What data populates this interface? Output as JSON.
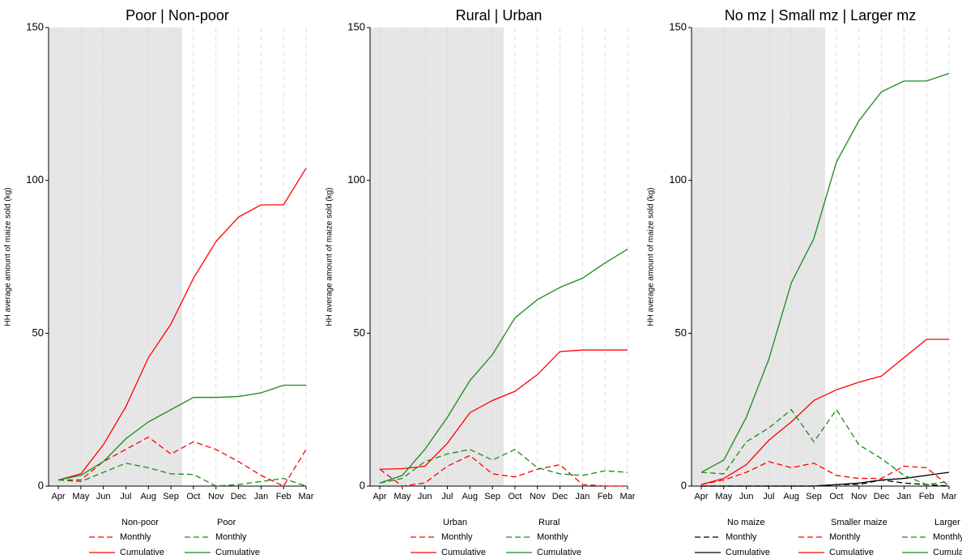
{
  "chart_data": [
    {
      "type": "line",
      "title": "Poor | Non-poor",
      "y_label": "HH average amount of maize sold (kg)",
      "categories": [
        "Apr",
        "May",
        "Jun",
        "Jul",
        "Aug",
        "Sep",
        "Oct",
        "Nov",
        "Dec",
        "Jan",
        "Feb",
        "Mar"
      ],
      "ylim": [
        0,
        150
      ],
      "yticks": [
        0,
        50,
        100,
        150
      ],
      "groups": [
        {
          "name": "Non-poor",
          "color": "#ff0000",
          "series": [
            {
              "name": "Monthly",
              "dashed": true,
              "values": [
                2,
                2,
                8,
                12,
                16,
                10.5,
                14.5,
                12,
                8,
                3.5,
                0,
                12
              ]
            },
            {
              "name": "Cumulative",
              "dashed": false,
              "values": [
                2,
                4,
                13.5,
                26,
                42,
                53,
                68,
                80,
                88,
                92,
                92,
                104
              ]
            }
          ]
        },
        {
          "name": "Poor",
          "color": "#1a8a1a",
          "series": [
            {
              "name": "Monthly",
              "dashed": true,
              "values": [
                2,
                1.5,
                4.5,
                7.5,
                6,
                4,
                3.8,
                0,
                0.5,
                1.5,
                2.5,
                0
              ]
            },
            {
              "name": "Cumulative",
              "dashed": false,
              "values": [
                2,
                3.5,
                8,
                15.5,
                21,
                25,
                29,
                29,
                29.3,
                30.5,
                33,
                33
              ]
            }
          ]
        }
      ]
    },
    {
      "type": "line",
      "title": "Rural | Urban",
      "y_label": "HH average amount of maize sold (kg)",
      "categories": [
        "Apr",
        "May",
        "Jun",
        "Jul",
        "Aug",
        "Sep",
        "Oct",
        "Nov",
        "Dec",
        "Jan",
        "Feb",
        "Mar"
      ],
      "ylim": [
        0,
        150
      ],
      "yticks": [
        0,
        50,
        100,
        150
      ],
      "groups": [
        {
          "name": "Urban",
          "color": "#ff0000",
          "series": [
            {
              "name": "Monthly",
              "dashed": true,
              "values": [
                5.5,
                0,
                1,
                6.5,
                10,
                4,
                3,
                5.5,
                7,
                0.5,
                0,
                0
              ]
            },
            {
              "name": "Cumulative",
              "dashed": false,
              "values": [
                5.5,
                5.7,
                6.5,
                14,
                24,
                28,
                31,
                36.5,
                44,
                44.5,
                44.5,
                44.5
              ]
            }
          ]
        },
        {
          "name": "Rural",
          "color": "#1a8a1a",
          "series": [
            {
              "name": "Monthly",
              "dashed": true,
              "values": [
                1,
                2.5,
                8,
                10.5,
                12,
                8.5,
                12,
                6,
                4,
                3.5,
                5,
                4.5
              ]
            },
            {
              "name": "Cumulative",
              "dashed": false,
              "values": [
                1,
                3.5,
                12,
                22.5,
                34.5,
                43,
                55,
                61,
                65,
                68,
                73,
                77.5
              ]
            }
          ]
        }
      ]
    },
    {
      "type": "line",
      "title": "No mz | Small mz | Larger mz",
      "y_label": "HH average amount of maize sold (kg)",
      "categories": [
        "Apr",
        "May",
        "Jun",
        "Jul",
        "Aug",
        "Sep",
        "Oct",
        "Nov",
        "Dec",
        "Jan",
        "Feb",
        "Mar"
      ],
      "ylim": [
        0,
        150
      ],
      "yticks": [
        0,
        50,
        100,
        150
      ],
      "groups": [
        {
          "name": "No maize",
          "color": "#000000",
          "series": [
            {
              "name": "Monthly",
              "dashed": true,
              "values": [
                0,
                0,
                0,
                0,
                0,
                0,
                0.5,
                0.5,
                2,
                1,
                0.5,
                0
              ]
            },
            {
              "name": "Cumulative",
              "dashed": false,
              "values": [
                0,
                0,
                0,
                0,
                0,
                0,
                0.5,
                1,
                2,
                2.5,
                3.5,
                4.5
              ]
            }
          ]
        },
        {
          "name": "Smaller maize",
          "color": "#ff0000",
          "series": [
            {
              "name": "Monthly",
              "dashed": true,
              "values": [
                0.5,
                2,
                4.5,
                8,
                6,
                7.5,
                3.5,
                2.5,
                2.5,
                6.5,
                6,
                0
              ]
            },
            {
              "name": "Cumulative",
              "dashed": false,
              "values": [
                0.5,
                2.5,
                7,
                15,
                21,
                28,
                31.5,
                34,
                36,
                42,
                48,
                48
              ]
            }
          ]
        },
        {
          "name": "Larger maize",
          "color": "#1a8a1a",
          "series": [
            {
              "name": "Monthly",
              "dashed": true,
              "values": [
                4.5,
                4,
                14.5,
                19,
                25,
                14.5,
                25,
                13.5,
                9,
                3.5,
                0.5,
                1.5
              ]
            },
            {
              "name": "Cumulative",
              "dashed": false,
              "values": [
                4.5,
                8.5,
                22.5,
                41.5,
                66.5,
                81,
                106,
                119.5,
                129,
                132.5,
                132.5,
                135
              ]
            }
          ]
        }
      ]
    }
  ]
}
